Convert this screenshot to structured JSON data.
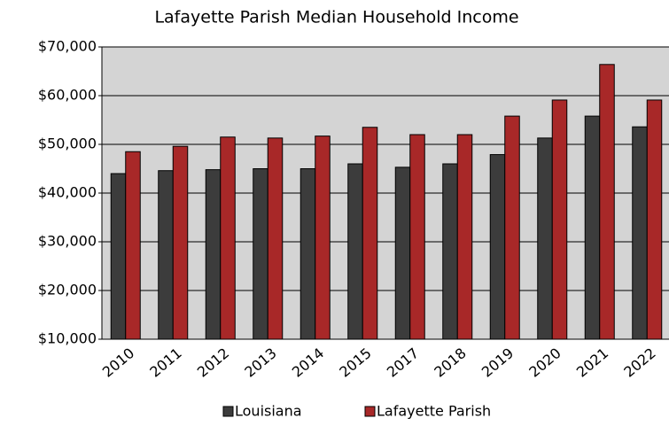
{
  "chart_data": {
    "type": "bar",
    "title": "Lafayette Parish Median Household Income",
    "categories": [
      "2010",
      "2011",
      "2012",
      "2013",
      "2014",
      "2015",
      "2017",
      "2018",
      "2019",
      "2020",
      "2021",
      "2022"
    ],
    "series": [
      {
        "name": "Louisiana",
        "color": "#3c3c3c",
        "values": [
          44000,
          44600,
          44800,
          45000,
          45000,
          46000,
          45300,
          46000,
          47900,
          51300,
          55800,
          53600
        ]
      },
      {
        "name": "Lafayette Parish",
        "color": "#a82828",
        "values": [
          48500,
          49600,
          51500,
          51300,
          51700,
          53500,
          52000,
          52000,
          55800,
          59100,
          66400,
          59100
        ]
      }
    ],
    "ylim": [
      10000,
      70000
    ],
    "yticks": [
      {
        "value": 10000,
        "label": "$10,000"
      },
      {
        "value": 20000,
        "label": "$20,000"
      },
      {
        "value": 30000,
        "label": "$30,000"
      },
      {
        "value": 40000,
        "label": "$40,000"
      },
      {
        "value": 50000,
        "label": "$50,000"
      },
      {
        "value": 60000,
        "label": "$60,000"
      },
      {
        "value": 70000,
        "label": "$70,000"
      }
    ],
    "grid": true,
    "legend": "bottom"
  }
}
